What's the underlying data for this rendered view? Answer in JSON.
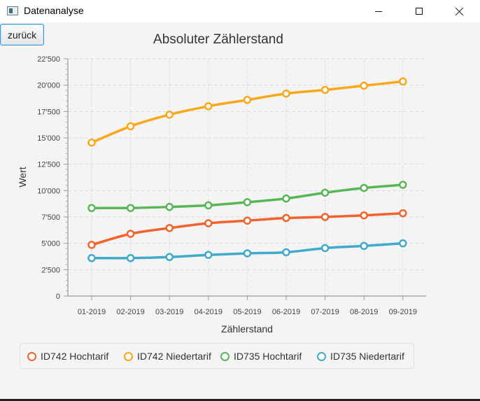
{
  "window": {
    "title": "Datenanalyse"
  },
  "toolbar": {
    "back_label": "zurück"
  },
  "chart_data": {
    "type": "line",
    "title": "Absoluter Zählerstand",
    "xlabel": "Zählerstand",
    "ylabel": "Wert",
    "categories": [
      "01-2019",
      "02-2019",
      "03-2019",
      "04-2019",
      "05-2019",
      "06-2019",
      "07-2019",
      "08-2019",
      "09-2019"
    ],
    "ylim": [
      0,
      22500
    ],
    "yticks": [
      0,
      2500,
      5000,
      7500,
      10000,
      12500,
      15000,
      17500,
      20000,
      22500
    ],
    "ytick_labels": [
      "0",
      "2'500",
      "5'000",
      "7'500",
      "10'000",
      "12'500",
      "15'000",
      "17'500",
      "20'000",
      "22'500"
    ],
    "grid": true,
    "legend_position": "bottom",
    "series": [
      {
        "name": "ID742 Hochtarif",
        "color": "#f3622d",
        "values": [
          4850,
          5900,
          6450,
          6900,
          7150,
          7400,
          7500,
          7650,
          7850
        ]
      },
      {
        "name": "ID742 Niedertarif",
        "color": "#fba71b",
        "values": [
          14550,
          16100,
          17200,
          18000,
          18600,
          19200,
          19550,
          19950,
          20350
        ]
      },
      {
        "name": "ID735 Hochtarif",
        "color": "#57b757",
        "values": [
          8350,
          8350,
          8450,
          8600,
          8900,
          9250,
          9800,
          10250,
          10550
        ]
      },
      {
        "name": "ID735 Niedertarif",
        "color": "#41a9c9",
        "values": [
          3600,
          3600,
          3700,
          3900,
          4050,
          4150,
          4550,
          4750,
          5000
        ]
      }
    ]
  }
}
